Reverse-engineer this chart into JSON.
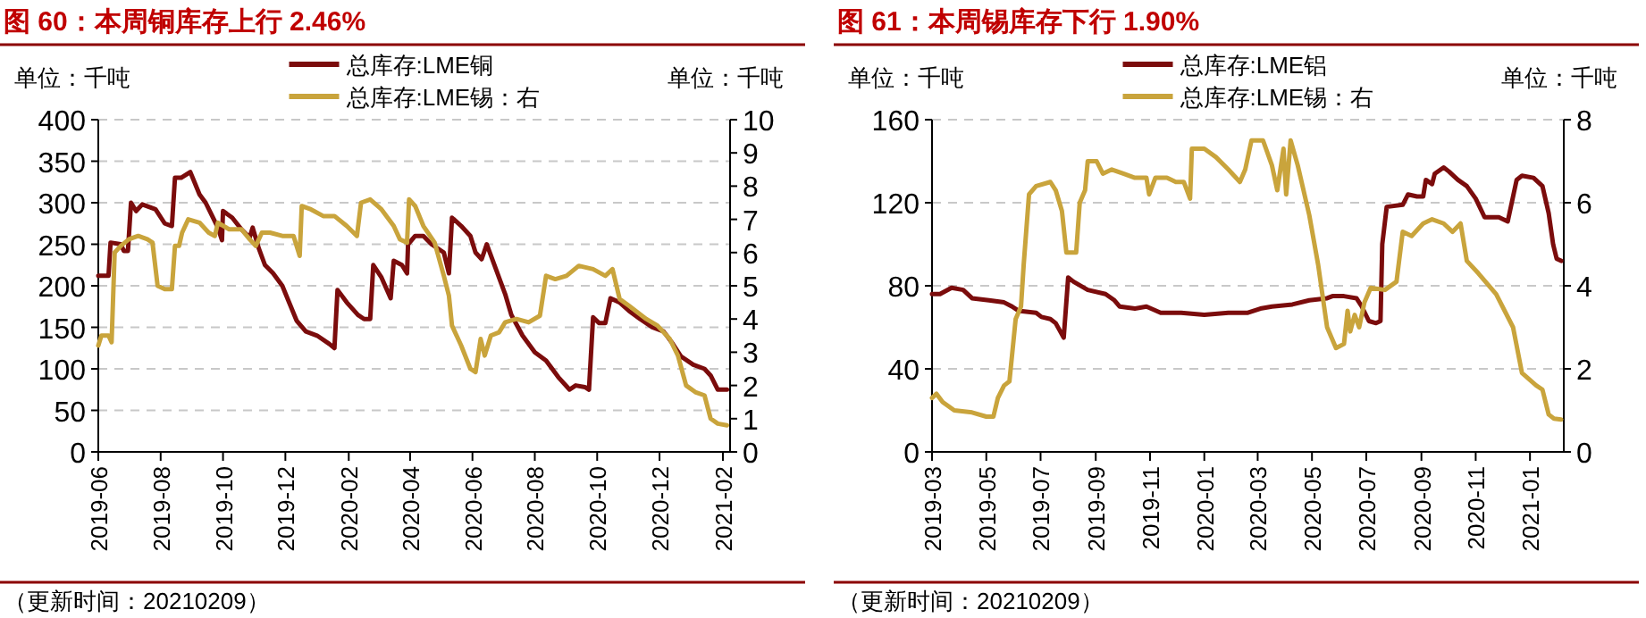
{
  "chart_data": [
    {
      "type": "line",
      "title": "图 60：本周铜库存上行 2.46%",
      "annotations": [
        "单位：千吨",
        "单位：千吨",
        "（更新时间：20210209）"
      ],
      "xlim": [
        "2019-06-01",
        "2021-02-08"
      ],
      "xticks": [
        "2019-06",
        "2019-08",
        "2019-10",
        "2019-12",
        "2020-02",
        "2020-04",
        "2020-06",
        "2020-08",
        "2020-10",
        "2020-12",
        "2021-02"
      ],
      "ylim": [
        0,
        400
      ],
      "yticks": [
        0,
        50,
        100,
        150,
        200,
        250,
        300,
        350,
        400
      ],
      "y2lim": [
        0,
        10
      ],
      "y2ticks": [
        0,
        1,
        2,
        3,
        4,
        5,
        6,
        7,
        8,
        9,
        10
      ],
      "grid": "y",
      "legend": "top",
      "series": [
        {
          "name": "总库存:LME铜",
          "color": "#7b0c0c",
          "x": [
            "2019-06-01",
            "2019-06-11",
            "2019-06-13",
            "2019-06-23",
            "2019-06-26",
            "2019-06-30",
            "2019-07-03",
            "2019-07-08",
            "2019-07-14",
            "2019-07-27",
            "2019-08-05",
            "2019-08-12",
            "2019-08-15",
            "2019-08-21",
            "2019-08-30",
            "2019-09-03",
            "2019-09-08",
            "2019-09-14",
            "2019-09-20",
            "2019-09-26",
            "2019-09-30",
            "2019-10-01",
            "2019-10-10",
            "2019-10-19",
            "2019-10-27",
            "2019-10-30",
            "2019-11-05",
            "2019-11-11",
            "2019-11-19",
            "2019-11-28",
            "2019-12-03",
            "2019-12-12",
            "2019-12-21",
            "2020-01-01",
            "2020-01-13",
            "2020-01-18",
            "2020-01-21",
            "2020-01-30",
            "2020-02-10",
            "2020-02-16",
            "2020-02-22",
            "2020-02-25",
            "2020-03-04",
            "2020-03-13",
            "2020-03-16",
            "2020-03-24",
            "2020-03-29",
            "2020-03-30",
            "2020-04-06",
            "2020-04-14",
            "2020-04-22",
            "2020-05-04",
            "2020-05-09",
            "2020-05-12",
            "2020-05-21",
            "2020-05-30",
            "2020-06-04",
            "2020-06-10",
            "2020-06-15",
            "2020-06-21",
            "2020-07-03",
            "2020-07-09",
            "2020-07-20",
            "2020-08-01",
            "2020-08-12",
            "2020-08-24",
            "2020-09-04",
            "2020-09-10",
            "2020-09-19",
            "2020-09-23",
            "2020-09-27",
            "2020-10-03",
            "2020-10-09",
            "2020-10-14",
            "2020-10-23",
            "2020-11-01",
            "2020-11-12",
            "2020-11-24",
            "2020-12-05",
            "2020-12-14",
            "2020-12-22",
            "2021-01-03",
            "2021-01-14",
            "2021-01-20",
            "2021-01-27",
            "2021-02-05"
          ],
          "values": [
            212,
            212,
            252,
            250,
            242,
            242,
            300,
            290,
            298,
            292,
            275,
            272,
            330,
            330,
            337,
            325,
            310,
            300,
            285,
            270,
            255,
            290,
            282,
            268,
            258,
            270,
            245,
            225,
            215,
            200,
            185,
            158,
            145,
            140,
            130,
            125,
            195,
            180,
            165,
            160,
            160,
            225,
            210,
            185,
            230,
            225,
            215,
            250,
            260,
            260,
            250,
            240,
            215,
            282,
            272,
            260,
            240,
            232,
            250,
            230,
            190,
            165,
            140,
            120,
            110,
            90,
            75,
            80,
            78,
            75,
            162,
            155,
            155,
            185,
            180,
            170,
            160,
            150,
            145,
            130,
            115,
            105,
            100,
            92,
            75,
            75
          ]
        },
        {
          "name": "总库存:LME锡：右",
          "color": "#c9a43c",
          "axis": "y2",
          "x": [
            "2019-06-01",
            "2019-06-04",
            "2019-06-11",
            "2019-06-14",
            "2019-06-17",
            "2019-06-23",
            "2019-07-01",
            "2019-07-10",
            "2019-07-19",
            "2019-07-24",
            "2019-07-29",
            "2019-08-05",
            "2019-08-12",
            "2019-08-15",
            "2019-08-19",
            "2019-08-22",
            "2019-08-28",
            "2019-09-08",
            "2019-09-17",
            "2019-09-23",
            "2019-09-26",
            "2019-10-07",
            "2019-10-19",
            "2019-10-27",
            "2019-11-02",
            "2019-11-08",
            "2019-11-16",
            "2019-11-28",
            "2019-12-09",
            "2019-12-15",
            "2019-12-17",
            "2019-12-26",
            "2020-01-07",
            "2020-01-18",
            "2020-01-30",
            "2020-02-09",
            "2020-02-13",
            "2020-02-22",
            "2020-03-04",
            "2020-03-16",
            "2020-03-22",
            "2020-03-29",
            "2020-03-31",
            "2020-04-06",
            "2020-04-14",
            "2020-04-25",
            "2020-05-04",
            "2020-05-09",
            "2020-05-12",
            "2020-05-21",
            "2020-05-30",
            "2020-06-04",
            "2020-06-09",
            "2020-06-13",
            "2020-06-19",
            "2020-06-27",
            "2020-07-03",
            "2020-07-14",
            "2020-07-26",
            "2020-08-06",
            "2020-08-12",
            "2020-08-21",
            "2020-09-01",
            "2020-09-13",
            "2020-09-27",
            "2020-10-09",
            "2020-10-16",
            "2020-10-23",
            "2020-11-01",
            "2020-11-18",
            "2020-11-29",
            "2020-12-11",
            "2020-12-19",
            "2020-12-27",
            "2021-01-05",
            "2021-01-14",
            "2021-01-20",
            "2021-01-27",
            "2021-02-05"
          ],
          "values": [
            3.2,
            3.5,
            3.5,
            3.3,
            6.0,
            6.2,
            6.4,
            6.5,
            6.4,
            6.3,
            5.0,
            4.9,
            4.9,
            6.2,
            6.2,
            6.6,
            7.0,
            6.9,
            6.6,
            6.5,
            6.9,
            6.7,
            6.7,
            6.4,
            6.2,
            6.6,
            6.6,
            6.5,
            6.5,
            5.9,
            7.4,
            7.3,
            7.1,
            7.1,
            6.8,
            6.5,
            7.5,
            7.6,
            7.3,
            6.8,
            6.4,
            6.3,
            7.6,
            7.4,
            6.8,
            6.3,
            5.3,
            4.7,
            3.8,
            3.2,
            2.5,
            2.4,
            3.4,
            2.9,
            3.5,
            3.6,
            3.9,
            4.0,
            3.9,
            4.1,
            5.3,
            5.2,
            5.3,
            5.6,
            5.5,
            5.3,
            5.5,
            4.6,
            4.4,
            4.0,
            3.8,
            3.4,
            2.9,
            2.0,
            1.8,
            1.7,
            1.0,
            0.85,
            0.8
          ]
        }
      ]
    },
    {
      "type": "line",
      "title": "图 61：本周锡库存下行 1.90%",
      "annotations": [
        "单位：千吨",
        "单位：千吨",
        "（更新时间：20210209）"
      ],
      "xlim": [
        "2019-03-01",
        "2021-02-08"
      ],
      "xticks": [
        "2019-03",
        "2019-05",
        "2019-07",
        "2019-09",
        "2019-11",
        "2020-01",
        "2020-03",
        "2020-05",
        "2020-07",
        "2020-09",
        "2020-11",
        "2021-01"
      ],
      "ylim": [
        0,
        160
      ],
      "yticks": [
        0,
        40,
        80,
        120,
        160
      ],
      "y2lim": [
        0,
        8
      ],
      "y2ticks": [
        0,
        2,
        4,
        6,
        8
      ],
      "grid": "y",
      "legend": "top",
      "series": [
        {
          "name": "总库存:LME铝",
          "color": "#7b0c0c",
          "x": [
            "2019-03-01",
            "2019-03-10",
            "2019-03-23",
            "2019-04-05",
            "2019-04-15",
            "2019-05-04",
            "2019-05-21",
            "2019-05-30",
            "2019-06-06",
            "2019-06-26",
            "2019-07-02",
            "2019-07-12",
            "2019-07-18",
            "2019-07-27",
            "2019-08-01",
            "2019-08-07",
            "2019-08-23",
            "2019-09-12",
            "2019-09-22",
            "2019-09-28",
            "2019-10-15",
            "2019-10-28",
            "2019-11-13",
            "2019-12-06",
            "2020-01-01",
            "2020-01-28",
            "2020-02-19",
            "2020-03-04",
            "2020-03-17",
            "2020-04-09",
            "2020-04-28",
            "2020-05-18",
            "2020-05-24",
            "2020-06-06",
            "2020-06-20",
            "2020-06-26",
            "2020-07-04",
            "2020-07-12",
            "2020-07-17",
            "2020-07-19",
            "2020-07-24",
            "2020-08-11",
            "2020-08-17",
            "2020-08-27",
            "2020-09-03",
            "2020-09-06",
            "2020-09-13",
            "2020-09-16",
            "2020-09-26",
            "2020-10-02",
            "2020-10-12",
            "2020-10-22",
            "2020-11-01",
            "2020-11-11",
            "2020-11-27",
            "2020-12-07",
            "2020-12-17",
            "2020-12-23",
            "2021-01-05",
            "2021-01-15",
            "2021-01-22",
            "2021-01-27",
            "2021-01-31",
            "2021-02-05"
          ],
          "values": [
            76,
            76,
            79,
            78,
            74,
            73,
            72,
            70,
            68,
            67,
            65,
            64,
            62,
            55,
            84,
            82,
            78,
            76,
            73,
            70,
            69,
            70,
            67,
            67,
            66,
            67,
            67,
            69,
            70,
            71,
            73,
            74,
            75,
            75,
            74,
            70,
            63,
            62,
            63,
            100,
            118,
            119,
            124,
            123,
            123,
            131,
            129,
            134,
            137,
            135,
            131,
            128,
            122,
            113,
            113,
            111,
            131,
            133,
            132,
            128,
            115,
            100,
            93,
            92
          ]
        },
        {
          "name": "总库存:LME锡：右",
          "color": "#c9a43c",
          "axis": "y2",
          "x": [
            "2019-03-01",
            "2019-03-06",
            "2019-03-13",
            "2019-03-26",
            "2019-04-15",
            "2019-05-01",
            "2019-05-09",
            "2019-05-14",
            "2019-05-21",
            "2019-05-27",
            "2019-06-03",
            "2019-06-09",
            "2019-06-12",
            "2019-06-18",
            "2019-06-26",
            "2019-07-12",
            "2019-07-18",
            "2019-07-25",
            "2019-07-30",
            "2019-08-10",
            "2019-08-14",
            "2019-08-20",
            "2019-08-23",
            "2019-09-02",
            "2019-09-09",
            "2019-09-19",
            "2019-10-02",
            "2019-10-15",
            "2019-10-28",
            "2019-10-31",
            "2019-11-07",
            "2019-11-20",
            "2019-11-30",
            "2019-12-09",
            "2019-12-16",
            "2019-12-18",
            "2020-01-01",
            "2020-01-14",
            "2020-01-28",
            "2020-02-10",
            "2020-02-16",
            "2020-02-23",
            "2020-03-07",
            "2020-03-17",
            "2020-03-23",
            "2020-03-30",
            "2020-04-02",
            "2020-04-07",
            "2020-04-15",
            "2020-04-28",
            "2020-05-08",
            "2020-05-18",
            "2020-05-28",
            "2020-06-06",
            "2020-06-10",
            "2020-06-13",
            "2020-06-18",
            "2020-06-23",
            "2020-06-29",
            "2020-07-06",
            "2020-07-22",
            "2020-08-04",
            "2020-08-11",
            "2020-08-21",
            "2020-09-03",
            "2020-09-13",
            "2020-09-26",
            "2020-10-06",
            "2020-10-15",
            "2020-10-22",
            "2020-11-04",
            "2020-11-24",
            "2020-12-13",
            "2020-12-23",
            "2021-01-08",
            "2021-01-15",
            "2021-01-22",
            "2021-01-28",
            "2021-02-05"
          ],
          "values": [
            1.3,
            1.4,
            1.2,
            1.0,
            0.95,
            0.85,
            0.85,
            1.3,
            1.6,
            1.7,
            3.2,
            3.5,
            4.5,
            6.2,
            6.4,
            6.5,
            6.3,
            5.8,
            4.8,
            4.8,
            6.0,
            6.3,
            7.0,
            7.0,
            6.7,
            6.8,
            6.7,
            6.6,
            6.6,
            6.2,
            6.6,
            6.6,
            6.5,
            6.5,
            6.1,
            7.3,
            7.3,
            7.1,
            6.8,
            6.5,
            6.8,
            7.5,
            7.5,
            6.9,
            6.3,
            7.3,
            6.2,
            7.5,
            6.9,
            5.7,
            4.5,
            3.0,
            2.5,
            2.6,
            3.4,
            2.9,
            3.3,
            3.0,
            3.6,
            3.95,
            3.9,
            4.1,
            5.3,
            5.2,
            5.5,
            5.6,
            5.5,
            5.3,
            5.5,
            4.6,
            4.3,
            3.8,
            3.0,
            1.9,
            1.6,
            1.5,
            0.9,
            0.8,
            0.78
          ]
        }
      ]
    }
  ]
}
